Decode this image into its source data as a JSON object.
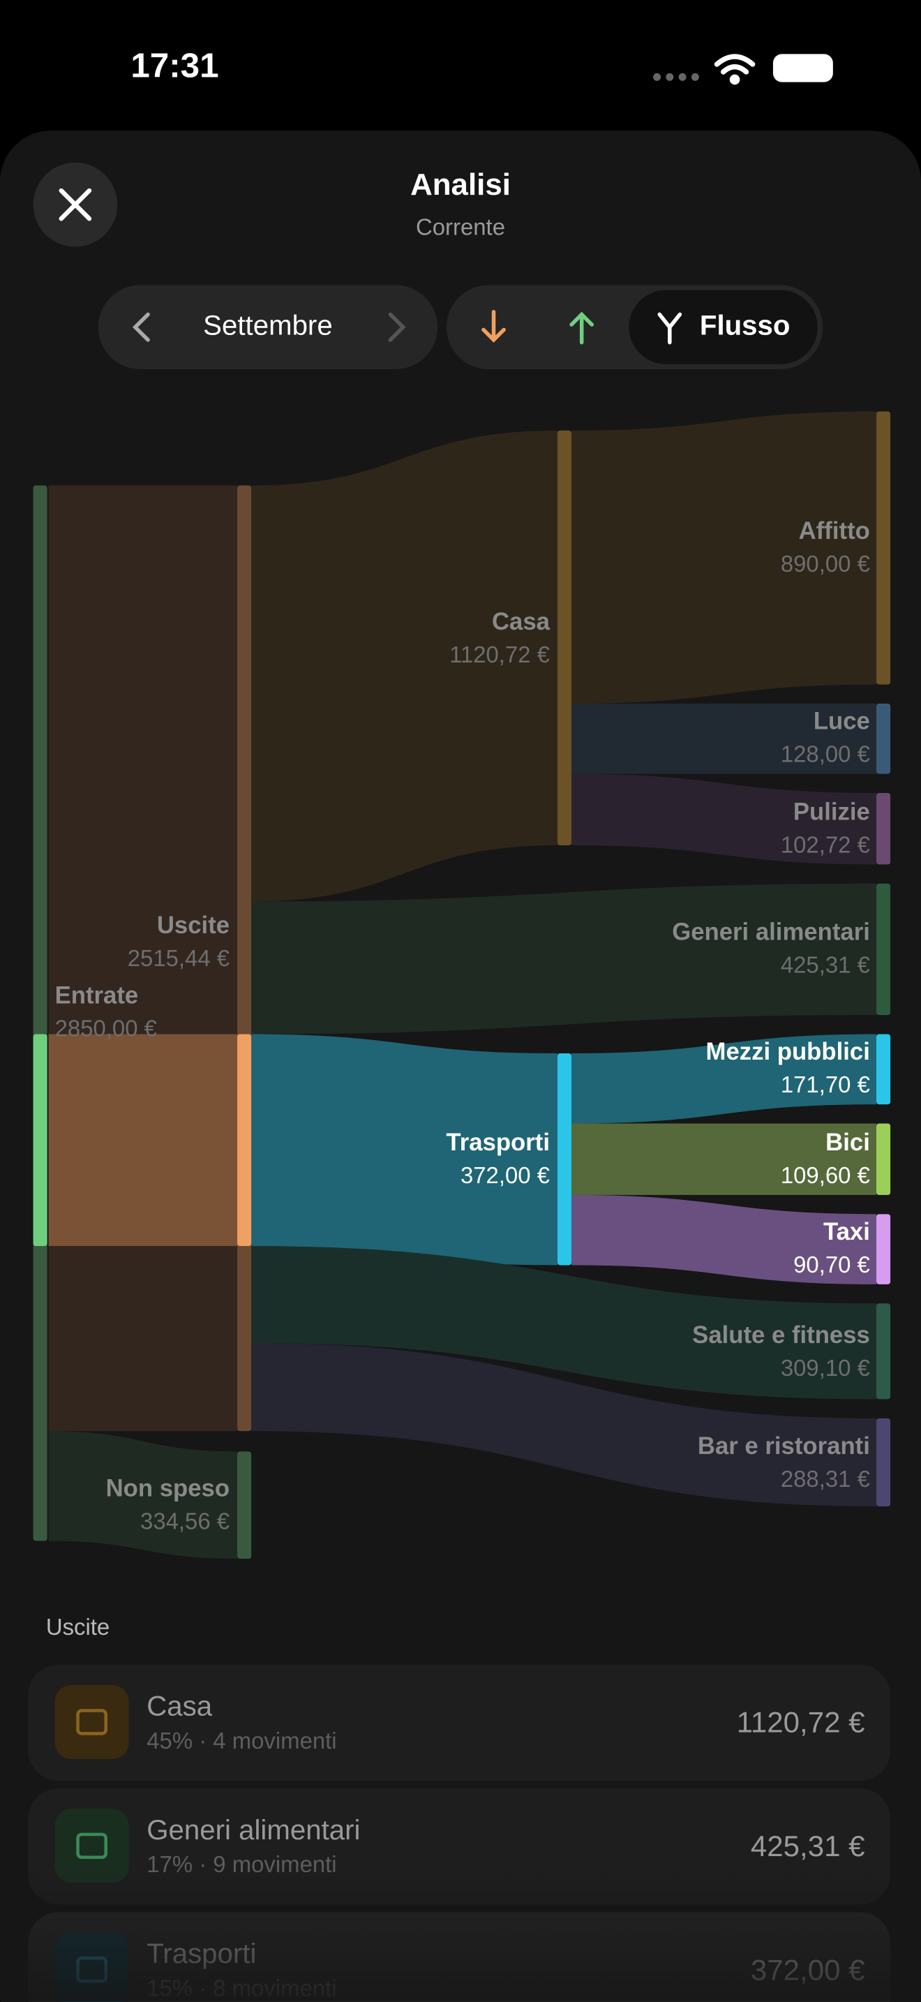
{
  "status": {
    "time": "17:31"
  },
  "header": {
    "title": "Analisi",
    "subtitle": "Corrente"
  },
  "controls": {
    "month": "Settembre",
    "mode": "Flusso"
  },
  "sankey": {
    "nodes": [
      {
        "label": "Entrate",
        "amount": "2850,00 €"
      },
      {
        "label": "Uscite",
        "amount": "2515,44 €"
      },
      {
        "label": "Non speso",
        "amount": "334,56 €"
      },
      {
        "label": "Casa",
        "amount": "1120,72 €"
      },
      {
        "label": "Trasporti",
        "amount": "372,00 €"
      },
      {
        "label": "Affitto",
        "amount": "890,00 €"
      },
      {
        "label": "Luce",
        "amount": "128,00 €"
      },
      {
        "label": "Pulizie",
        "amount": "102,72 €"
      },
      {
        "label": "Generi alimentari",
        "amount": "425,31 €"
      },
      {
        "label": "Mezzi pubblici",
        "amount": "171,70 €"
      },
      {
        "label": "Bici",
        "amount": "109,60 €"
      },
      {
        "label": "Taxi",
        "amount": "90,70 €"
      },
      {
        "label": "Salute e fitness",
        "amount": "309,10 €"
      },
      {
        "label": "Bar e ristoranti",
        "amount": "288,31 €"
      }
    ]
  },
  "list": {
    "section": "Uscite",
    "items": [
      {
        "name": "Casa",
        "detail": "45% · 4 movimenti",
        "amount": "1120,72 €"
      },
      {
        "name": "Generi alimentari",
        "detail": "17% · 9 movimenti",
        "amount": "425,31 €"
      },
      {
        "name": "Trasporti",
        "detail": "15% · 8 movimenti",
        "amount": "372,00 €"
      }
    ]
  }
}
